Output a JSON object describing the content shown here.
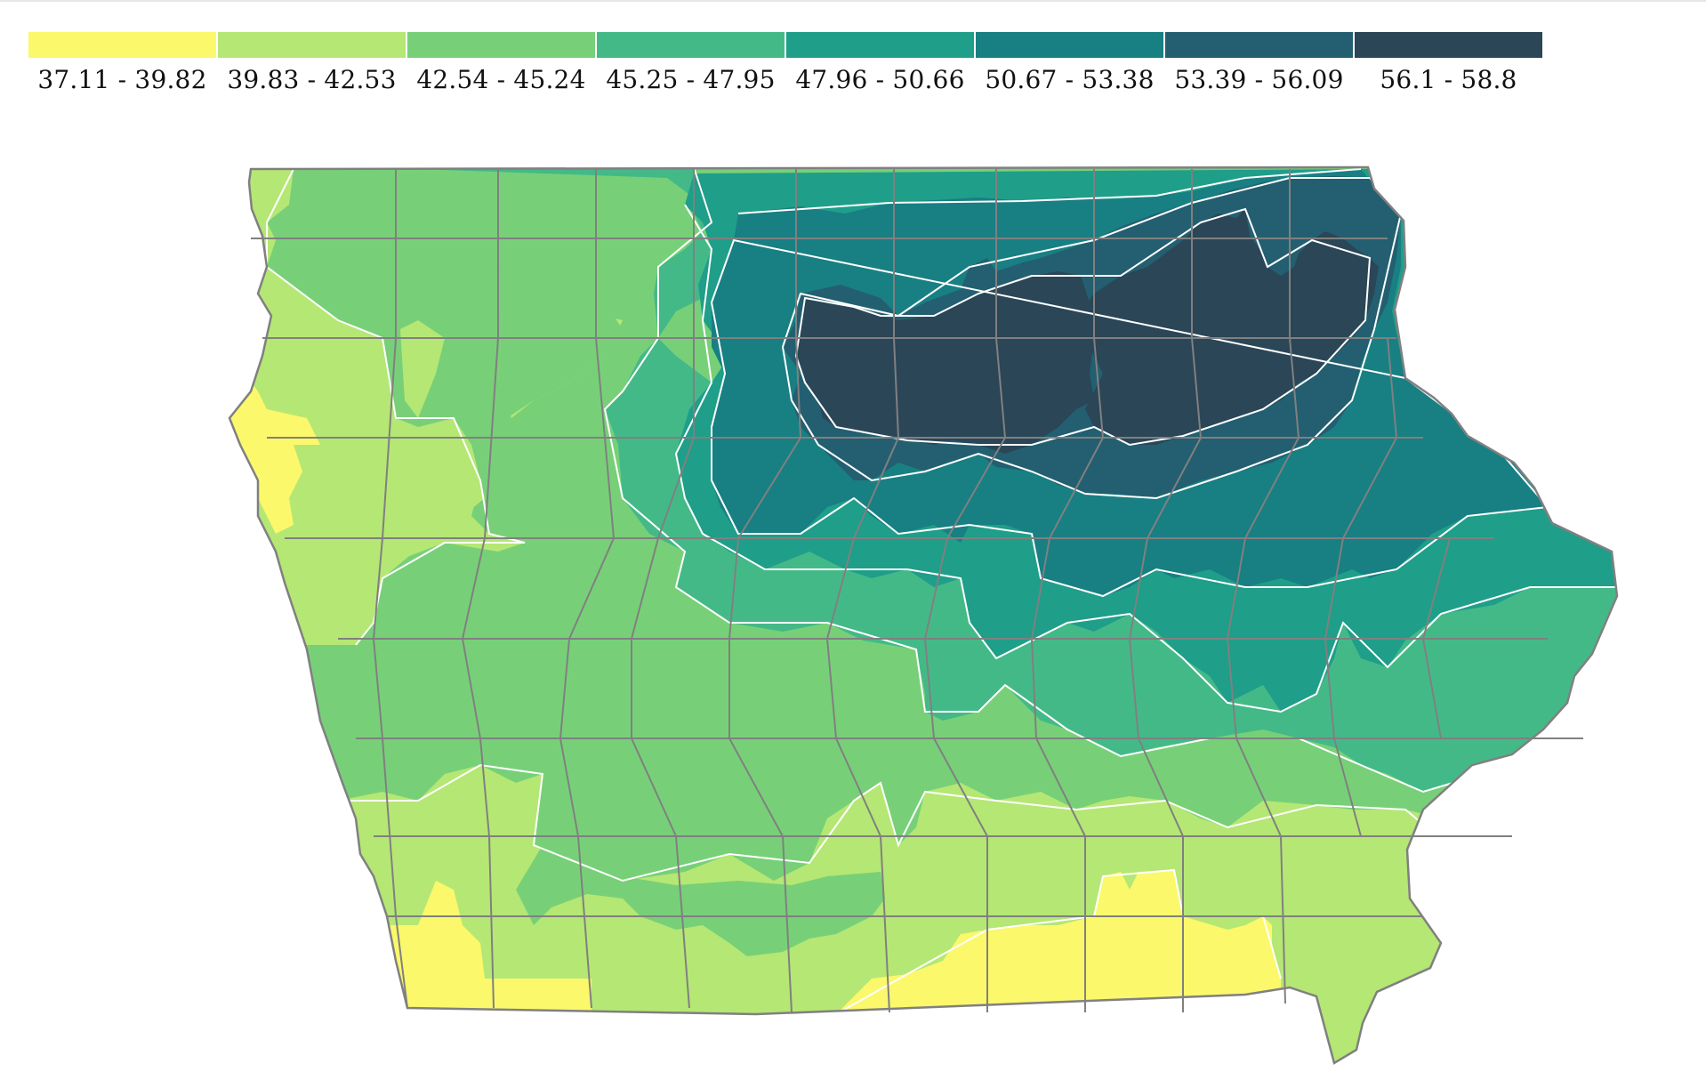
{
  "legend": {
    "items": [
      {
        "label": "37.11 - 39.82",
        "color": "#fbf86c"
      },
      {
        "label": "39.83 - 42.53",
        "color": "#b5e774"
      },
      {
        "label": "42.54 - 45.24",
        "color": "#77d078"
      },
      {
        "label": "45.25 - 47.95",
        "color": "#44b988"
      },
      {
        "label": "47.96 - 50.66",
        "color": "#1f9e89"
      },
      {
        "label": "50.67 - 53.38",
        "color": "#187f83"
      },
      {
        "label": "53.39 - 56.09",
        "color": "#235f70"
      },
      {
        "label": "56.1 - 58.8",
        "color": "#2a4657"
      }
    ]
  },
  "map": {
    "region": "Iowa",
    "county_border_color": "#808080",
    "contour_line_color": "#ffffff"
  }
}
